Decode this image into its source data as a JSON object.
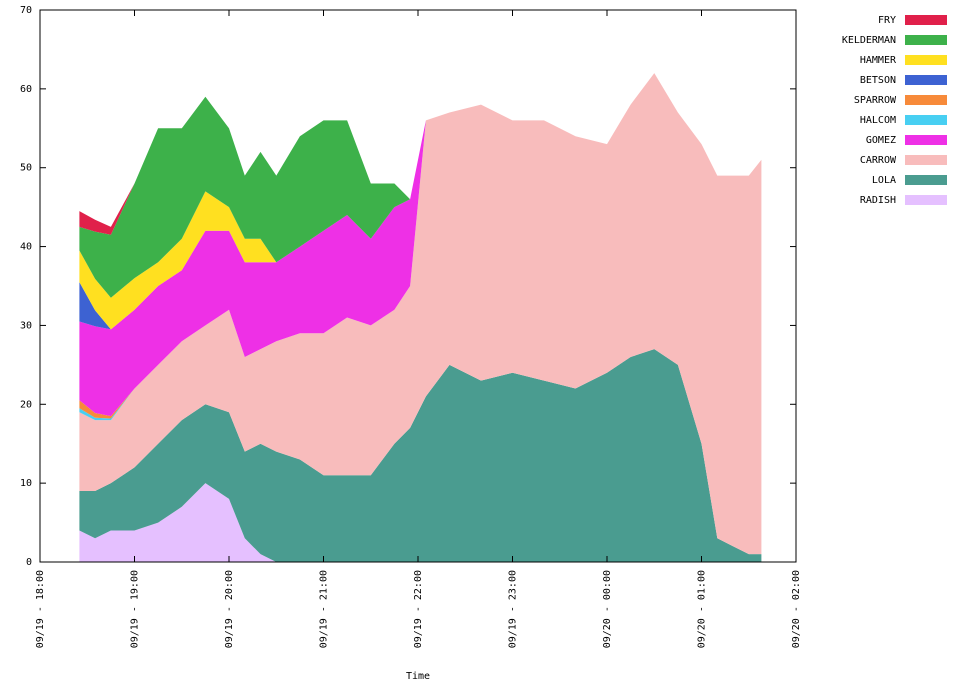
{
  "chart_data": {
    "type": "area",
    "stacked": true,
    "title": "",
    "xlabel": "Time",
    "ylabel": "",
    "ylim": [
      0,
      70
    ],
    "yticks": [
      0,
      10,
      20,
      30,
      40,
      50,
      60,
      70
    ],
    "xlim": [
      "09/19 18:00",
      "09/20 02:00"
    ],
    "xticks": [
      "09/19 - 18:00",
      "09/19 - 19:00",
      "09/19 - 20:00",
      "09/19 - 21:00",
      "09/19 - 22:00",
      "09/19 - 23:00",
      "09/20 - 00:00",
      "09/20 - 01:00",
      "09/20 - 02:00"
    ],
    "grid": false,
    "legend_position": "top-right, outside plot",
    "x": [
      "09/19 18:25",
      "09/19 18:35",
      "09/19 18:45",
      "09/19 19:00",
      "09/19 19:15",
      "09/19 19:30",
      "09/19 19:45",
      "09/19 20:00",
      "09/19 20:10",
      "09/19 20:20",
      "09/19 20:30",
      "09/19 20:45",
      "09/19 21:00",
      "09/19 21:15",
      "09/19 21:30",
      "09/19 21:45",
      "09/19 21:55",
      "09/19 22:05",
      "09/19 22:20",
      "09/19 22:40",
      "09/19 23:00",
      "09/19 23:20",
      "09/19 23:40",
      "09/20 00:00",
      "09/20 00:15",
      "09/20 00:30",
      "09/20 00:45",
      "09/20 01:00",
      "09/20 01:10",
      "09/20 01:20",
      "09/20 01:30",
      "09/20 01:38"
    ],
    "series": [
      {
        "name": "RADISH",
        "color": "#e5c0ff",
        "values": [
          4,
          3,
          4,
          4,
          5,
          7,
          10,
          8,
          3,
          1,
          0,
          0,
          0,
          0,
          0,
          0,
          0,
          0,
          0,
          0,
          0,
          0,
          0,
          0,
          0,
          0,
          0,
          0,
          0,
          0,
          0,
          0
        ]
      },
      {
        "name": "LOLA",
        "color": "#4a9c90",
        "values": [
          5,
          6,
          6,
          8,
          10,
          11,
          10,
          11,
          11,
          14,
          14,
          13,
          11,
          11,
          11,
          15,
          17,
          21,
          25,
          23,
          24,
          23,
          22,
          24,
          26,
          27,
          25,
          15,
          3,
          2,
          1,
          1
        ]
      },
      {
        "name": "CARROW",
        "color": "#f8bcbc",
        "values": [
          10,
          9,
          8,
          10,
          10,
          10,
          10,
          13,
          12,
          12,
          14,
          16,
          18,
          20,
          19,
          17,
          18,
          35,
          32,
          35,
          32,
          33,
          32,
          29,
          32,
          35,
          32,
          38,
          46,
          47,
          48,
          50
        ]
      },
      {
        "name": "HALCOM",
        "color": "#48cff2",
        "values": [
          0.5,
          0.3,
          0.2,
          0,
          0,
          0,
          0,
          0,
          0,
          0,
          0,
          0,
          0,
          0,
          0,
          0,
          0,
          0,
          0,
          0,
          0,
          0,
          0,
          0,
          0,
          0,
          0,
          0,
          0,
          0,
          0,
          0
        ]
      },
      {
        "name": "SPARROW",
        "color": "#f78a3a",
        "values": [
          1,
          0.6,
          0.3,
          0,
          0,
          0,
          0,
          0,
          0,
          0,
          0,
          0,
          0,
          0,
          0,
          0,
          0,
          0,
          0,
          0,
          0,
          0,
          0,
          0,
          0,
          0,
          0,
          0,
          0,
          0,
          0,
          0
        ]
      },
      {
        "name": "GOMEZ",
        "color": "#ee30e6",
        "values": [
          10,
          11,
          11,
          10,
          10,
          9,
          12,
          10,
          12,
          11,
          10,
          11,
          13,
          13,
          11,
          13,
          11,
          0,
          0,
          0,
          0,
          0,
          0,
          0,
          0,
          0,
          0,
          0,
          0,
          0,
          0,
          0
        ]
      },
      {
        "name": "BETSON",
        "color": "#3d62d2",
        "values": [
          5,
          2,
          0,
          0,
          0,
          0,
          0,
          0,
          0,
          0,
          0,
          0,
          0,
          0,
          0,
          0,
          0,
          0,
          0,
          0,
          0,
          0,
          0,
          0,
          0,
          0,
          0,
          0,
          0,
          0,
          0,
          0
        ]
      },
      {
        "name": "HAMMER",
        "color": "#ffe020",
        "values": [
          4,
          4,
          4,
          4,
          3,
          4,
          5,
          3,
          3,
          3,
          0,
          0,
          0,
          0,
          0,
          0,
          0,
          0,
          0,
          0,
          0,
          0,
          0,
          0,
          0,
          0,
          0,
          0,
          0,
          0,
          0,
          0
        ]
      },
      {
        "name": "KELDERMAN",
        "color": "#3db14a",
        "values": [
          3,
          6,
          8,
          12,
          17,
          14,
          12,
          10,
          8,
          11,
          11,
          14,
          14,
          12,
          7,
          3,
          0,
          0,
          0,
          0,
          0,
          0,
          0,
          0,
          0,
          0,
          0,
          0,
          0,
          0,
          0,
          0
        ]
      },
      {
        "name": "FRY",
        "color": "#e0204a",
        "values": [
          2,
          1.5,
          1,
          0,
          0,
          0,
          0,
          0,
          0,
          0,
          0,
          0,
          0,
          0,
          0,
          0,
          0,
          0,
          0,
          0,
          0,
          0,
          0,
          0,
          0,
          0,
          0,
          0,
          0,
          0,
          0,
          0
        ]
      }
    ],
    "legend_order": [
      "FRY",
      "KELDERMAN",
      "HAMMER",
      "BETSON",
      "SPARROW",
      "HALCOM",
      "GOMEZ",
      "CARROW",
      "LOLA",
      "RADISH"
    ]
  }
}
